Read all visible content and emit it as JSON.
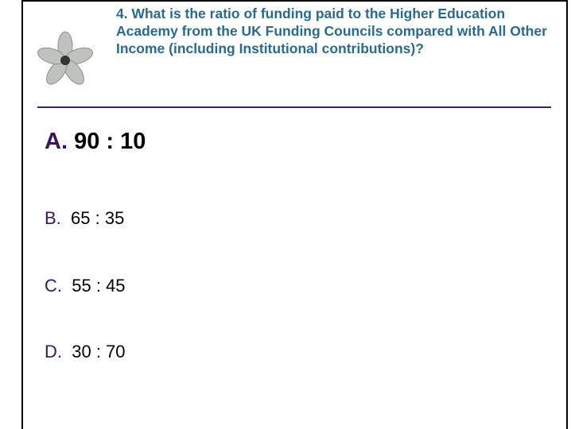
{
  "question": "4. What is the ratio of funding paid to the Higher Education Academy from the UK Funding Councils compared with All Other Income (including Institutional contributions)?",
  "options": [
    {
      "letter": "A.",
      "text": "90 : 10"
    },
    {
      "letter": "B.",
      "text": "65 : 35"
    },
    {
      "letter": "C.",
      "text": "55 : 45"
    },
    {
      "letter": "D.",
      "text": "30 : 70"
    }
  ]
}
